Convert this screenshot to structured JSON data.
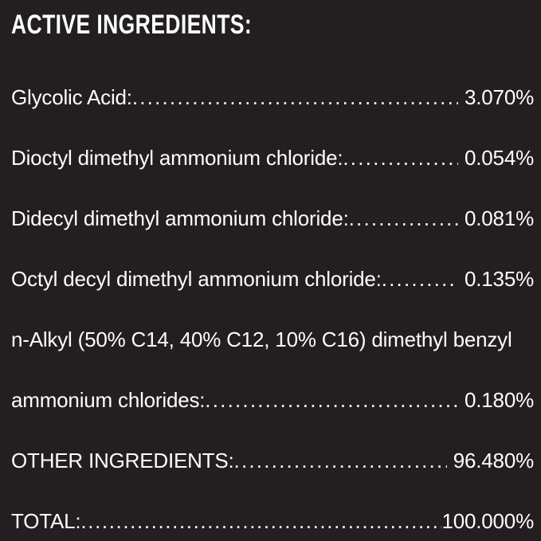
{
  "page": {
    "background_color": "#231f20",
    "text_color": "#fdfdfd"
  },
  "header": {
    "title": "ACTIVE INGREDIENTS:"
  },
  "table": {
    "leader_char": ".",
    "rows": [
      {
        "label": "Glycolic Acid:",
        "value": "3.070%",
        "leader": true
      },
      {
        "label": "Dioctyl dimethyl ammonium chloride:",
        "value": "0.054%",
        "leader": true
      },
      {
        "label": "Didecyl dimethyl ammonium chloride:",
        "value": "0.081%",
        "leader": true
      },
      {
        "label": "Octyl decyl dimethyl ammonium chloride:",
        "value": "0.135%",
        "leader": true
      },
      {
        "label": "n-Alkyl (50% C14, 40% C12, 10% C16) dimethyl benzyl",
        "value": "",
        "leader": false
      },
      {
        "label": "ammonium chlorides:",
        "value": "0.180%",
        "leader": true
      },
      {
        "label": "OTHER INGREDIENTS:",
        "value": "96.480%",
        "leader": true
      },
      {
        "label": "TOTAL:",
        "value": "100.000%",
        "leader": true
      }
    ]
  }
}
